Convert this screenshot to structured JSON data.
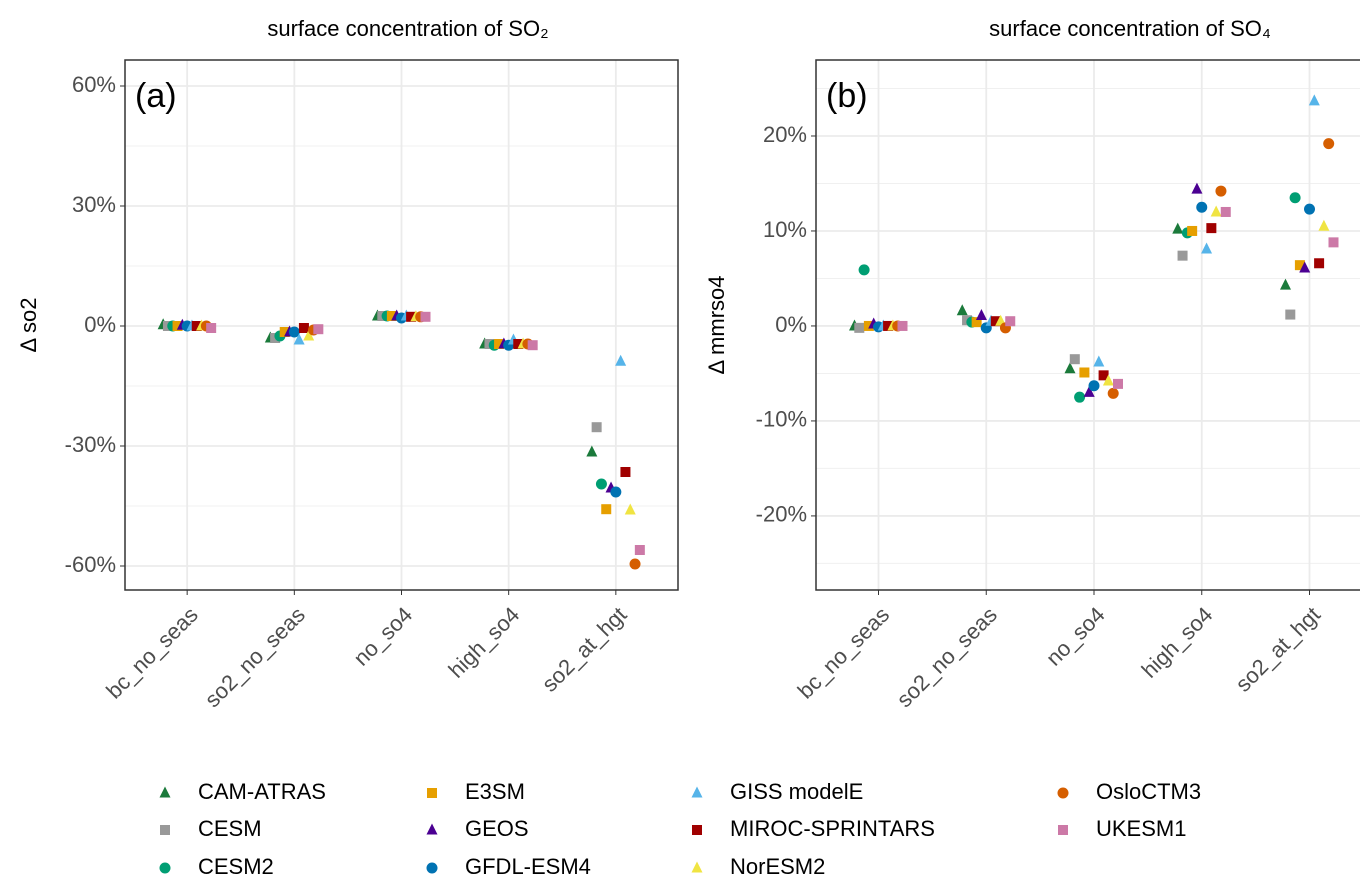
{
  "chart_data": [
    {
      "type": "scatter",
      "title": "surface concentration of SO₂",
      "panel_label": "(a)",
      "y_label": "Δ so2",
      "categories": [
        "bc_no_seas",
        "so2_no_seas",
        "no_so4",
        "high_so4",
        "so2_at_hgt"
      ],
      "ylim": [
        -66,
        66.5
      ],
      "yticks": [
        {
          "value": -60,
          "label": "-60%"
        },
        {
          "value": -30,
          "label": "-30%"
        },
        {
          "value": 0,
          "label": "0%"
        },
        {
          "value": 30,
          "label": "30%"
        },
        {
          "value": 60,
          "label": "60%"
        }
      ],
      "yticks_minor": [
        -45,
        -15,
        15,
        45
      ],
      "grid": true,
      "series": [
        {
          "name": "CAM-ATRAS",
          "color": "#1b7a3b",
          "marker": "triangle",
          "values": [
            0.3,
            -3,
            2.5,
            -4.5,
            -31.5
          ]
        },
        {
          "name": "CESM",
          "color": "#999999",
          "marker": "square",
          "values": [
            0,
            -3,
            2.5,
            -4.5,
            -25.3
          ]
        },
        {
          "name": "CESM2",
          "color": "#009e73",
          "marker": "circle",
          "values": [
            0,
            -2.5,
            2.5,
            -4.8,
            -39.5
          ]
        },
        {
          "name": "E3SM",
          "color": "#e69f00",
          "marker": "square",
          "values": [
            0,
            -1.5,
            2.5,
            -4.5,
            -45.8
          ]
        },
        {
          "name": "GEOS",
          "color": "#4b0092",
          "marker": "triangle",
          "values": [
            0.2,
            -1.5,
            2.5,
            -4.5,
            -40.5
          ]
        },
        {
          "name": "GFDL-ESM4",
          "color": "#0072b2",
          "marker": "circle",
          "values": [
            0,
            -1.5,
            2,
            -4.8,
            -41.5
          ]
        },
        {
          "name": "GISS modelE",
          "color": "#56b4e9",
          "marker": "triangle",
          "values": [
            0,
            -3.5,
            2.5,
            -3.5,
            -8.8
          ]
        },
        {
          "name": "MIROC-SPRINTARS",
          "color": "#a00000",
          "marker": "square",
          "values": [
            0,
            -0.5,
            2.3,
            -4.5,
            -36.5
          ]
        },
        {
          "name": "NorESM2",
          "color": "#f0e442",
          "marker": "triangle",
          "values": [
            0,
            -2.5,
            2.3,
            -4.5,
            -46
          ]
        },
        {
          "name": "OsloCTM3",
          "color": "#d55e00",
          "marker": "circle",
          "values": [
            0,
            -1,
            2.3,
            -4.5,
            -59.5
          ]
        },
        {
          "name": "UKESM1",
          "color": "#cc79a7",
          "marker": "square",
          "values": [
            -0.5,
            -0.8,
            2.3,
            -4.8,
            -56
          ]
        }
      ]
    },
    {
      "type": "scatter",
      "title": "surface concentration of SO₄",
      "panel_label": "(b)",
      "y_label": "Δ mmrso4",
      "categories": [
        "bc_no_seas",
        "so2_no_seas",
        "no_so4",
        "high_so4",
        "so2_at_hgt"
      ],
      "ylim": [
        -27.8,
        28
      ],
      "yticks": [
        {
          "value": -20,
          "label": "-20%"
        },
        {
          "value": -10,
          "label": "-10%"
        },
        {
          "value": 0,
          "label": "0%"
        },
        {
          "value": 10,
          "label": "10%"
        },
        {
          "value": 20,
          "label": "20%"
        }
      ],
      "yticks_minor": [
        -25,
        -15,
        -5,
        5,
        15,
        25
      ],
      "grid": true,
      "series": [
        {
          "values": [
            0,
            1.6,
            -4.5,
            10.2,
            4.3
          ]
        },
        {
          "values": [
            -0.2,
            0.6,
            -3.5,
            7.4,
            1.2
          ]
        },
        {
          "values": [
            5.9,
            0.4,
            -7.5,
            9.8,
            13.5
          ]
        },
        {
          "values": [
            0,
            0.4,
            -4.9,
            10,
            6.4
          ]
        },
        {
          "values": [
            0.2,
            1.1,
            -7,
            14.4,
            6.1
          ]
        },
        {
          "values": [
            -0.1,
            -0.2,
            -6.3,
            12.5,
            12.3
          ]
        },
        {
          "values": [
            0,
            0.5,
            -3.8,
            8.1,
            23.7
          ]
        },
        {
          "values": [
            0,
            0.5,
            -5.2,
            10.3,
            6.6
          ]
        },
        {
          "values": [
            0,
            0.5,
            -5.8,
            12,
            10.5
          ]
        },
        {
          "values": [
            0,
            -0.2,
            -7.1,
            14.2,
            19.2
          ]
        },
        {
          "values": [
            0,
            0.5,
            -6.1,
            12,
            8.8
          ]
        }
      ]
    }
  ]
}
